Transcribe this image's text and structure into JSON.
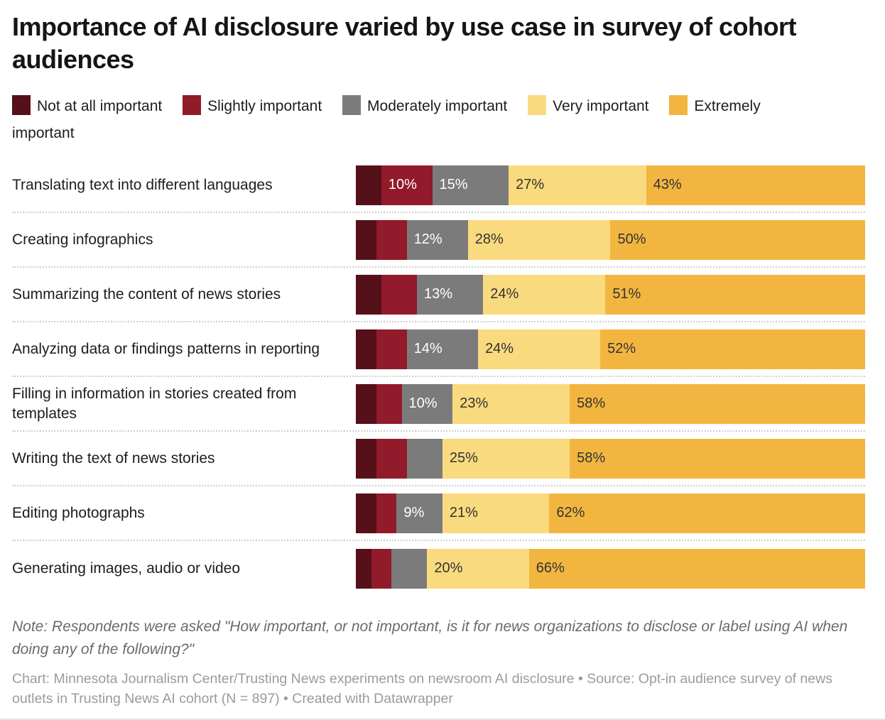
{
  "chart_data": {
    "type": "bar",
    "stacked": true,
    "orientation": "horizontal",
    "title": "Importance of AI disclosure varied by use case in survey of cohort audiences",
    "legend_position": "top",
    "xlim": [
      0,
      100
    ],
    "grid": false,
    "categories": [
      "Translating text into different languages",
      "Creating infographics",
      "Summarizing the content of news stories",
      "Analyzing data or findings patterns in reporting",
      "Filling in information in stories created from templates",
      "Writing the text of news stories",
      "Editing photographs",
      "Generating images, audio or video"
    ],
    "series": [
      {
        "name": "Not at all important",
        "color": "#551019",
        "values": [
          5,
          4,
          5,
          4,
          4,
          4,
          4,
          3
        ]
      },
      {
        "name": "Slightly important",
        "color": "#911a2b",
        "values": [
          10,
          6,
          7,
          6,
          5,
          6,
          4,
          4
        ]
      },
      {
        "name": "Moderately important",
        "color": "#7b7b7b",
        "values": [
          15,
          12,
          13,
          14,
          10,
          7,
          9,
          7
        ]
      },
      {
        "name": "Very important",
        "color": "#fada7e",
        "values": [
          27,
          28,
          24,
          24,
          23,
          25,
          21,
          20
        ]
      },
      {
        "name": "Extremely important",
        "color": "#f2b640",
        "values": [
          43,
          50,
          51,
          52,
          58,
          58,
          62,
          66
        ]
      }
    ],
    "value_labels": [
      [
        "",
        "10%",
        "15%",
        "27%",
        "43%"
      ],
      [
        "",
        "",
        "12%",
        "28%",
        "50%"
      ],
      [
        "",
        "",
        "13%",
        "24%",
        "51%"
      ],
      [
        "",
        "",
        "14%",
        "24%",
        "52%"
      ],
      [
        "",
        "",
        "10%",
        "23%",
        "58%"
      ],
      [
        "",
        "",
        "",
        "25%",
        "58%"
      ],
      [
        "",
        "",
        "9%",
        "21%",
        "62%"
      ],
      [
        "",
        "",
        "",
        "20%",
        "66%"
      ]
    ],
    "note": "Note: Respondents were asked \"How important, or not important, is it for news organizations to disclose or label using AI when doing any of the following?\"",
    "attribution": "Chart: Minnesota Journalism Center/Trusting News experiments on newsroom AI disclosure • Source: Opt-in audience survey of news outlets in Trusting News AI cohort (N = 897) • Created with Datawrapper"
  },
  "colors": {
    "title_text": "#151515",
    "label_text": "#1d1d1d",
    "note_text": "#6b6b6b",
    "attribution_text": "#9b9b9b",
    "separator": "#cfcfcf",
    "value_label_on_dark": "#ffffff",
    "value_label_on_light": "#333333"
  }
}
